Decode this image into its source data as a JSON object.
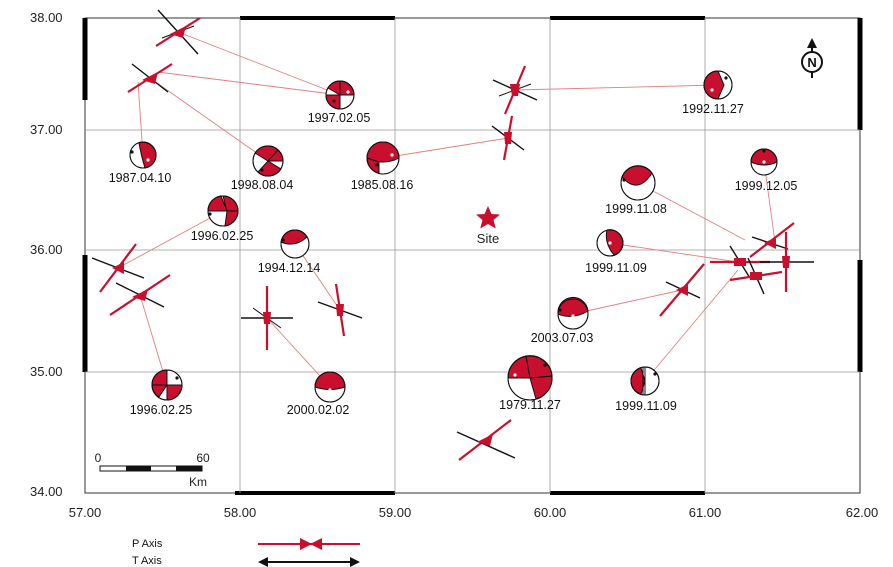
{
  "map": {
    "x_ticks": [
      "57.00",
      "58.00",
      "59.00",
      "60.00",
      "61.00",
      "62.00"
    ],
    "y_ticks": [
      "38.00",
      "37.00",
      "36.00",
      "35.00",
      "34.00"
    ],
    "site_label": "Site",
    "north_label": "N",
    "scale": {
      "start": "0",
      "end": "60",
      "unit": "Km"
    },
    "legend": {
      "p_axis": "P Axis",
      "t_axis": "T Axis"
    },
    "colors": {
      "red": "#c8102e",
      "black": "#111111",
      "link": "#e08080"
    },
    "events": [
      {
        "label": "1997.02.05"
      },
      {
        "label": "1992.11.27"
      },
      {
        "label": "1987.04.10"
      },
      {
        "label": "1998.08.04"
      },
      {
        "label": "1985.08.16"
      },
      {
        "label": "1999.11.08"
      },
      {
        "label": "1999.12.05"
      },
      {
        "label": "1996.02.25"
      },
      {
        "label": "1994.12.14"
      },
      {
        "label": "1999.11.09"
      },
      {
        "label": "2003.07.03"
      },
      {
        "label": "1996.02.25"
      },
      {
        "label": "2000.02.02"
      },
      {
        "label": "1979.11.27"
      },
      {
        "label": "1999.11.09"
      }
    ]
  }
}
